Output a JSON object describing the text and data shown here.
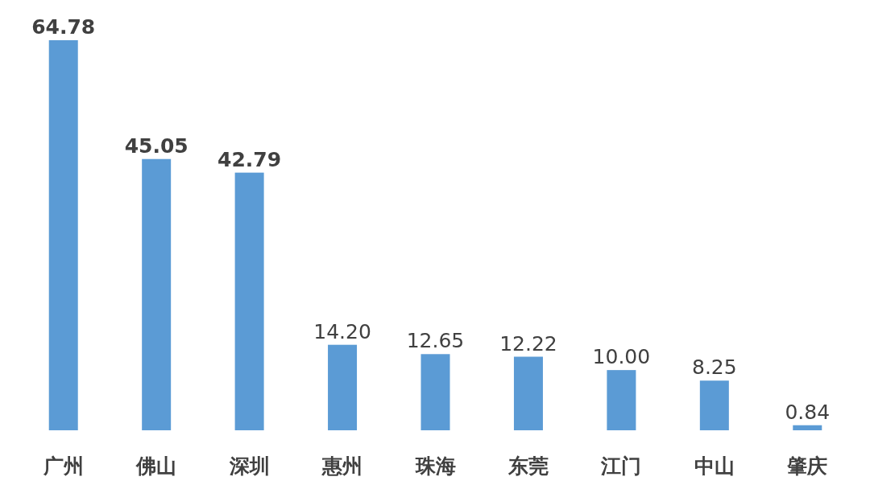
{
  "chart_data": {
    "type": "bar",
    "categories": [
      "广州",
      "佛山",
      "深圳",
      "惠州",
      "珠海",
      "东莞",
      "江门",
      "中山",
      "肇庆"
    ],
    "values": [
      64.78,
      45.05,
      42.79,
      14.2,
      12.65,
      12.22,
      10.0,
      8.25,
      0.84
    ],
    "value_labels": [
      "64.78",
      "45.05",
      "42.79",
      "14.20",
      "12.65",
      "12.22",
      "10.00",
      "8.25",
      "0.84"
    ],
    "color": "#5b9bd5"
  }
}
